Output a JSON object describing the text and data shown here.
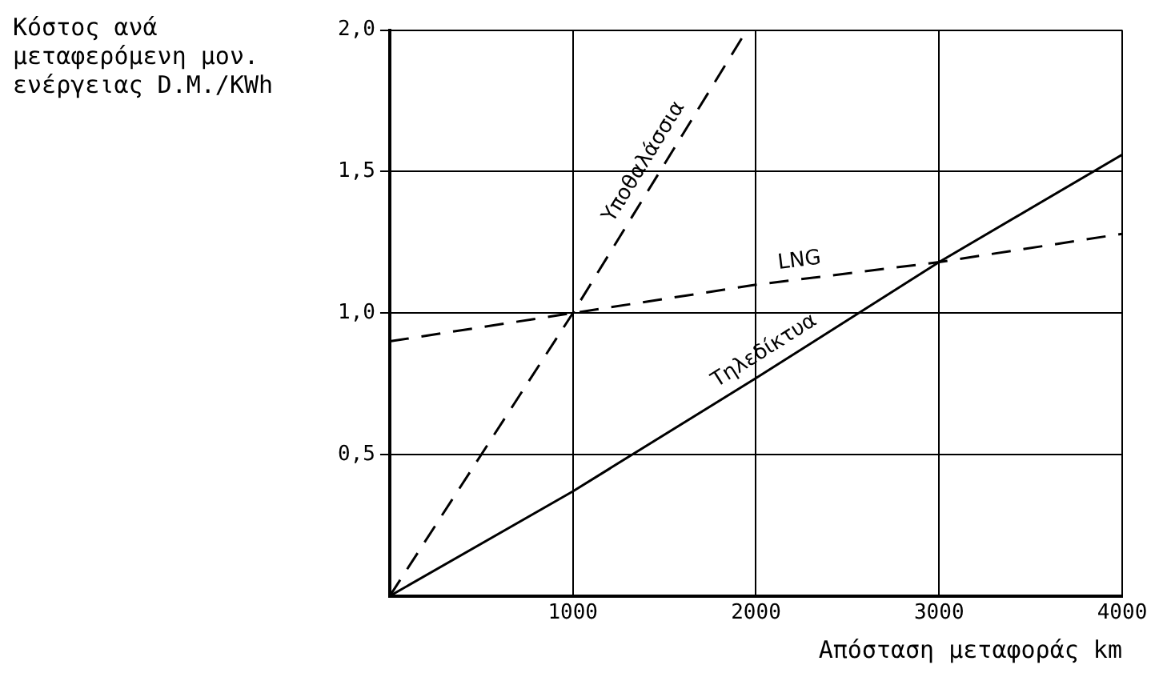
{
  "chart_data": {
    "type": "line",
    "ylabel": "Κόστος ανά μεταφερόμενη μον. ενέργειας D.M./KWh",
    "xlabel": "Απόσταση μεταφοράς km",
    "xlim": [
      0,
      4000
    ],
    "xticks": [
      1000,
      2000,
      3000,
      4000
    ],
    "ylim": [
      0,
      2.0
    ],
    "yticks": [
      {
        "value": 0.5,
        "label": "0,5"
      },
      {
        "value": 1.0,
        "label": "1,0"
      },
      {
        "value": 1.5,
        "label": "1,5"
      },
      {
        "value": 2.0,
        "label": "2,0"
      }
    ],
    "grid": true,
    "legend": false,
    "marker": "none",
    "series": [
      {
        "name": "Υποθαλάσσια",
        "color": "#000000",
        "line_style": "dashed",
        "x": [
          0,
          1000,
          1950
        ],
        "values": [
          0,
          1.0,
          2.0
        ]
      },
      {
        "name": "LNG",
        "color": "#000000",
        "line_style": "dashed",
        "x": [
          0,
          1000,
          2000,
          3000,
          4000
        ],
        "values": [
          0.9,
          1.0,
          1.1,
          1.18,
          1.28
        ]
      },
      {
        "name": "Τηλεδίκτυα",
        "color": "#000000",
        "line_style": "solid",
        "x": [
          0,
          1000,
          2000,
          3000,
          4000
        ],
        "values": [
          0,
          0.37,
          0.77,
          1.18,
          1.56
        ]
      }
    ]
  }
}
